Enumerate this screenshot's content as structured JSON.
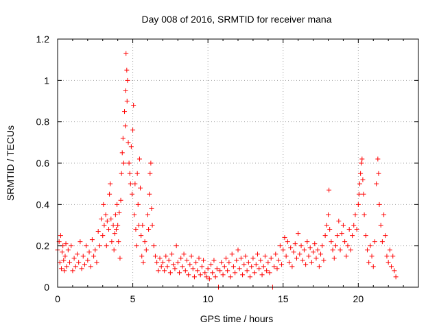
{
  "chart_data": {
    "type": "scatter",
    "title": "Day 008 of 2016, SRMTID for receiver mana",
    "xlabel": "GPS time / hours",
    "ylabel": "SRMTID / TECUs",
    "xlim": [
      0,
      24
    ],
    "ylim": [
      0,
      1.2
    ],
    "xticks": [
      0,
      5,
      10,
      15,
      20
    ],
    "xtick_labels": [
      "0",
      "5",
      "10",
      "15",
      "20"
    ],
    "yticks": [
      0,
      0.2,
      0.4,
      0.6,
      0.8,
      1.0,
      1.2
    ],
    "ytick_labels": [
      "0",
      "0.2",
      "0.4",
      "0.6",
      "0.8",
      "1",
      "1.2"
    ],
    "grid": true,
    "marker": "+",
    "color": "#ff0000",
    "series": [
      {
        "name": "SRMTID",
        "points": [
          [
            0.0,
            0.18
          ],
          [
            0.1,
            0.22
          ],
          [
            0.15,
            0.12
          ],
          [
            0.2,
            0.25
          ],
          [
            0.25,
            0.09
          ],
          [
            0.3,
            0.17
          ],
          [
            0.35,
            0.2
          ],
          [
            0.4,
            0.13
          ],
          [
            0.45,
            0.08
          ],
          [
            0.5,
            0.15
          ],
          [
            0.55,
            0.21
          ],
          [
            0.6,
            0.1
          ],
          [
            0.7,
            0.18
          ],
          [
            0.8,
            0.12
          ],
          [
            0.9,
            0.2
          ],
          [
            1.0,
            0.08
          ],
          [
            1.1,
            0.14
          ],
          [
            1.2,
            0.1
          ],
          [
            1.3,
            0.16
          ],
          [
            1.4,
            0.12
          ],
          [
            1.5,
            0.22
          ],
          [
            1.6,
            0.09
          ],
          [
            1.7,
            0.15
          ],
          [
            1.8,
            0.11
          ],
          [
            1.9,
            0.2
          ],
          [
            2.0,
            0.13
          ],
          [
            2.1,
            0.17
          ],
          [
            2.2,
            0.1
          ],
          [
            2.3,
            0.23
          ],
          [
            2.4,
            0.15
          ],
          [
            2.5,
            0.18
          ],
          [
            2.6,
            0.12
          ],
          [
            2.7,
            0.27
          ],
          [
            2.8,
            0.2
          ],
          [
            2.9,
            0.33
          ],
          [
            3.0,
            0.25
          ],
          [
            3.05,
            0.4
          ],
          [
            3.1,
            0.3
          ],
          [
            3.2,
            0.35
          ],
          [
            3.25,
            0.2
          ],
          [
            3.3,
            0.32
          ],
          [
            3.4,
            0.28
          ],
          [
            3.45,
            0.45
          ],
          [
            3.5,
            0.5
          ],
          [
            3.55,
            0.33
          ],
          [
            3.6,
            0.22
          ],
          [
            3.7,
            0.3
          ],
          [
            3.75,
            0.18
          ],
          [
            3.8,
            0.26
          ],
          [
            3.85,
            0.35
          ],
          [
            3.9,
            0.28
          ],
          [
            3.95,
            0.4
          ],
          [
            4.0,
            0.3
          ],
          [
            4.05,
            0.22
          ],
          [
            4.1,
            0.36
          ],
          [
            4.15,
            0.14
          ],
          [
            4.2,
            0.42
          ],
          [
            4.25,
            0.55
          ],
          [
            4.3,
            0.65
          ],
          [
            4.35,
            0.72
          ],
          [
            4.4,
            0.6
          ],
          [
            4.45,
            0.85
          ],
          [
            4.5,
            0.78
          ],
          [
            4.52,
            0.95
          ],
          [
            4.55,
            1.13
          ],
          [
            4.6,
            1.05
          ],
          [
            4.62,
            0.9
          ],
          [
            4.65,
            1.0
          ],
          [
            4.7,
            0.7
          ],
          [
            4.75,
            0.6
          ],
          [
            4.8,
            0.55
          ],
          [
            4.85,
            0.5
          ],
          [
            4.9,
            0.68
          ],
          [
            4.95,
            0.45
          ],
          [
            5.0,
            0.76
          ],
          [
            5.05,
            0.88
          ],
          [
            5.1,
            0.35
          ],
          [
            5.15,
            0.5
          ],
          [
            5.2,
            0.28
          ],
          [
            5.25,
            0.2
          ],
          [
            5.3,
            0.55
          ],
          [
            5.35,
            0.4
          ],
          [
            5.4,
            0.3
          ],
          [
            5.45,
            0.62
          ],
          [
            5.5,
            0.48
          ],
          [
            5.55,
            0.25
          ],
          [
            5.6,
            0.15
          ],
          [
            5.65,
            0.3
          ],
          [
            5.7,
            0.12
          ],
          [
            5.8,
            0.22
          ],
          [
            5.9,
            0.18
          ],
          [
            6.0,
            0.35
          ],
          [
            6.05,
            0.28
          ],
          [
            6.1,
            0.45
          ],
          [
            6.15,
            0.55
          ],
          [
            6.2,
            0.6
          ],
          [
            6.25,
            0.38
          ],
          [
            6.3,
            0.3
          ],
          [
            6.4,
            0.2
          ],
          [
            6.5,
            0.15
          ],
          [
            6.6,
            0.12
          ],
          [
            6.7,
            0.08
          ],
          [
            6.8,
            0.14
          ],
          [
            6.9,
            0.1
          ],
          [
            7.0,
            0.12
          ],
          [
            7.1,
            0.08
          ],
          [
            7.2,
            0.15
          ],
          [
            7.3,
            0.1
          ],
          [
            7.4,
            0.13
          ],
          [
            7.5,
            0.07
          ],
          [
            7.6,
            0.16
          ],
          [
            7.7,
            0.11
          ],
          [
            7.8,
            0.09
          ],
          [
            7.9,
            0.2
          ],
          [
            8.0,
            0.12
          ],
          [
            8.1,
            0.07
          ],
          [
            8.2,
            0.14
          ],
          [
            8.3,
            0.1
          ],
          [
            8.4,
            0.16
          ],
          [
            8.5,
            0.08
          ],
          [
            8.6,
            0.13
          ],
          [
            8.7,
            0.06
          ],
          [
            8.8,
            0.11
          ],
          [
            8.9,
            0.15
          ],
          [
            9.0,
            0.09
          ],
          [
            9.1,
            0.05
          ],
          [
            9.2,
            0.12
          ],
          [
            9.3,
            0.08
          ],
          [
            9.4,
            0.14
          ],
          [
            9.5,
            0.06
          ],
          [
            9.6,
            0.1
          ],
          [
            9.7,
            0.13
          ],
          [
            9.8,
            0.07
          ],
          [
            9.9,
            0.05
          ],
          [
            10.0,
            0.09
          ],
          [
            10.1,
            0.04
          ],
          [
            10.2,
            0.11
          ],
          [
            10.3,
            0.07
          ],
          [
            10.4,
            0.13
          ],
          [
            10.5,
            0.05
          ],
          [
            10.6,
            0.09
          ],
          [
            10.7,
            0.0
          ],
          [
            10.8,
            0.08
          ],
          [
            10.9,
            0.12
          ],
          [
            11.0,
            0.06
          ],
          [
            11.1,
            0.1
          ],
          [
            11.2,
            0.14
          ],
          [
            11.3,
            0.08
          ],
          [
            11.4,
            0.12
          ],
          [
            11.5,
            0.05
          ],
          [
            11.6,
            0.16
          ],
          [
            11.7,
            0.1
          ],
          [
            11.8,
            0.07
          ],
          [
            11.9,
            0.13
          ],
          [
            12.0,
            0.18
          ],
          [
            12.1,
            0.09
          ],
          [
            12.2,
            0.14
          ],
          [
            12.3,
            0.06
          ],
          [
            12.4,
            0.11
          ],
          [
            12.5,
            0.15
          ],
          [
            12.6,
            0.08
          ],
          [
            12.7,
            0.12
          ],
          [
            12.8,
            0.05
          ],
          [
            12.9,
            0.1
          ],
          [
            13.0,
            0.14
          ],
          [
            13.1,
            0.07
          ],
          [
            13.2,
            0.11
          ],
          [
            13.3,
            0.16
          ],
          [
            13.4,
            0.09
          ],
          [
            13.5,
            0.13
          ],
          [
            13.6,
            0.06
          ],
          [
            13.7,
            0.1
          ],
          [
            13.8,
            0.15
          ],
          [
            13.9,
            0.08
          ],
          [
            14.0,
            0.12
          ],
          [
            14.1,
            0.07
          ],
          [
            14.2,
            0.14
          ],
          [
            14.3,
            0.0
          ],
          [
            14.4,
            0.1
          ],
          [
            14.5,
            0.16
          ],
          [
            14.6,
            0.09
          ],
          [
            14.7,
            0.13
          ],
          [
            14.8,
            0.2
          ],
          [
            14.9,
            0.11
          ],
          [
            15.0,
            0.18
          ],
          [
            15.1,
            0.24
          ],
          [
            15.2,
            0.15
          ],
          [
            15.3,
            0.22
          ],
          [
            15.4,
            0.12
          ],
          [
            15.5,
            0.19
          ],
          [
            15.6,
            0.1
          ],
          [
            15.7,
            0.17
          ],
          [
            15.8,
            0.21
          ],
          [
            15.9,
            0.14
          ],
          [
            16.0,
            0.26
          ],
          [
            16.1,
            0.16
          ],
          [
            16.2,
            0.2
          ],
          [
            16.3,
            0.13
          ],
          [
            16.4,
            0.18
          ],
          [
            16.5,
            0.11
          ],
          [
            16.6,
            0.22
          ],
          [
            16.7,
            0.15
          ],
          [
            16.8,
            0.19
          ],
          [
            16.9,
            0.12
          ],
          [
            17.0,
            0.17
          ],
          [
            17.1,
            0.21
          ],
          [
            17.2,
            0.14
          ],
          [
            17.3,
            0.18
          ],
          [
            17.4,
            0.1
          ],
          [
            17.5,
            0.16
          ],
          [
            17.6,
            0.2
          ],
          [
            17.7,
            0.13
          ],
          [
            17.8,
            0.25
          ],
          [
            17.9,
            0.3
          ],
          [
            18.0,
            0.35
          ],
          [
            18.05,
            0.47
          ],
          [
            18.1,
            0.28
          ],
          [
            18.2,
            0.22
          ],
          [
            18.3,
            0.18
          ],
          [
            18.4,
            0.14
          ],
          [
            18.5,
            0.2
          ],
          [
            18.6,
            0.25
          ],
          [
            18.7,
            0.32
          ],
          [
            18.8,
            0.18
          ],
          [
            18.9,
            0.26
          ],
          [
            19.0,
            0.3
          ],
          [
            19.1,
            0.22
          ],
          [
            19.2,
            0.15
          ],
          [
            19.3,
            0.2
          ],
          [
            19.4,
            0.28
          ],
          [
            19.5,
            0.18
          ],
          [
            19.6,
            0.25
          ],
          [
            19.7,
            0.3
          ],
          [
            19.8,
            0.35
          ],
          [
            19.9,
            0.28
          ],
          [
            20.0,
            0.4
          ],
          [
            20.05,
            0.45
          ],
          [
            20.1,
            0.5
          ],
          [
            20.15,
            0.55
          ],
          [
            20.2,
            0.6
          ],
          [
            20.25,
            0.62
          ],
          [
            20.3,
            0.52
          ],
          [
            20.35,
            0.45
          ],
          [
            20.4,
            0.35
          ],
          [
            20.5,
            0.25
          ],
          [
            20.6,
            0.18
          ],
          [
            20.7,
            0.12
          ],
          [
            20.8,
            0.2
          ],
          [
            20.9,
            0.15
          ],
          [
            21.0,
            0.1
          ],
          [
            21.1,
            0.22
          ],
          [
            21.2,
            0.5
          ],
          [
            21.3,
            0.62
          ],
          [
            21.35,
            0.55
          ],
          [
            21.4,
            0.4
          ],
          [
            21.5,
            0.3
          ],
          [
            21.6,
            0.22
          ],
          [
            21.7,
            0.35
          ],
          [
            21.8,
            0.25
          ],
          [
            21.9,
            0.15
          ],
          [
            22.0,
            0.12
          ],
          [
            22.1,
            0.18
          ],
          [
            22.2,
            0.1
          ],
          [
            22.3,
            0.15
          ],
          [
            22.4,
            0.08
          ],
          [
            22.5,
            0.05
          ]
        ]
      }
    ]
  }
}
